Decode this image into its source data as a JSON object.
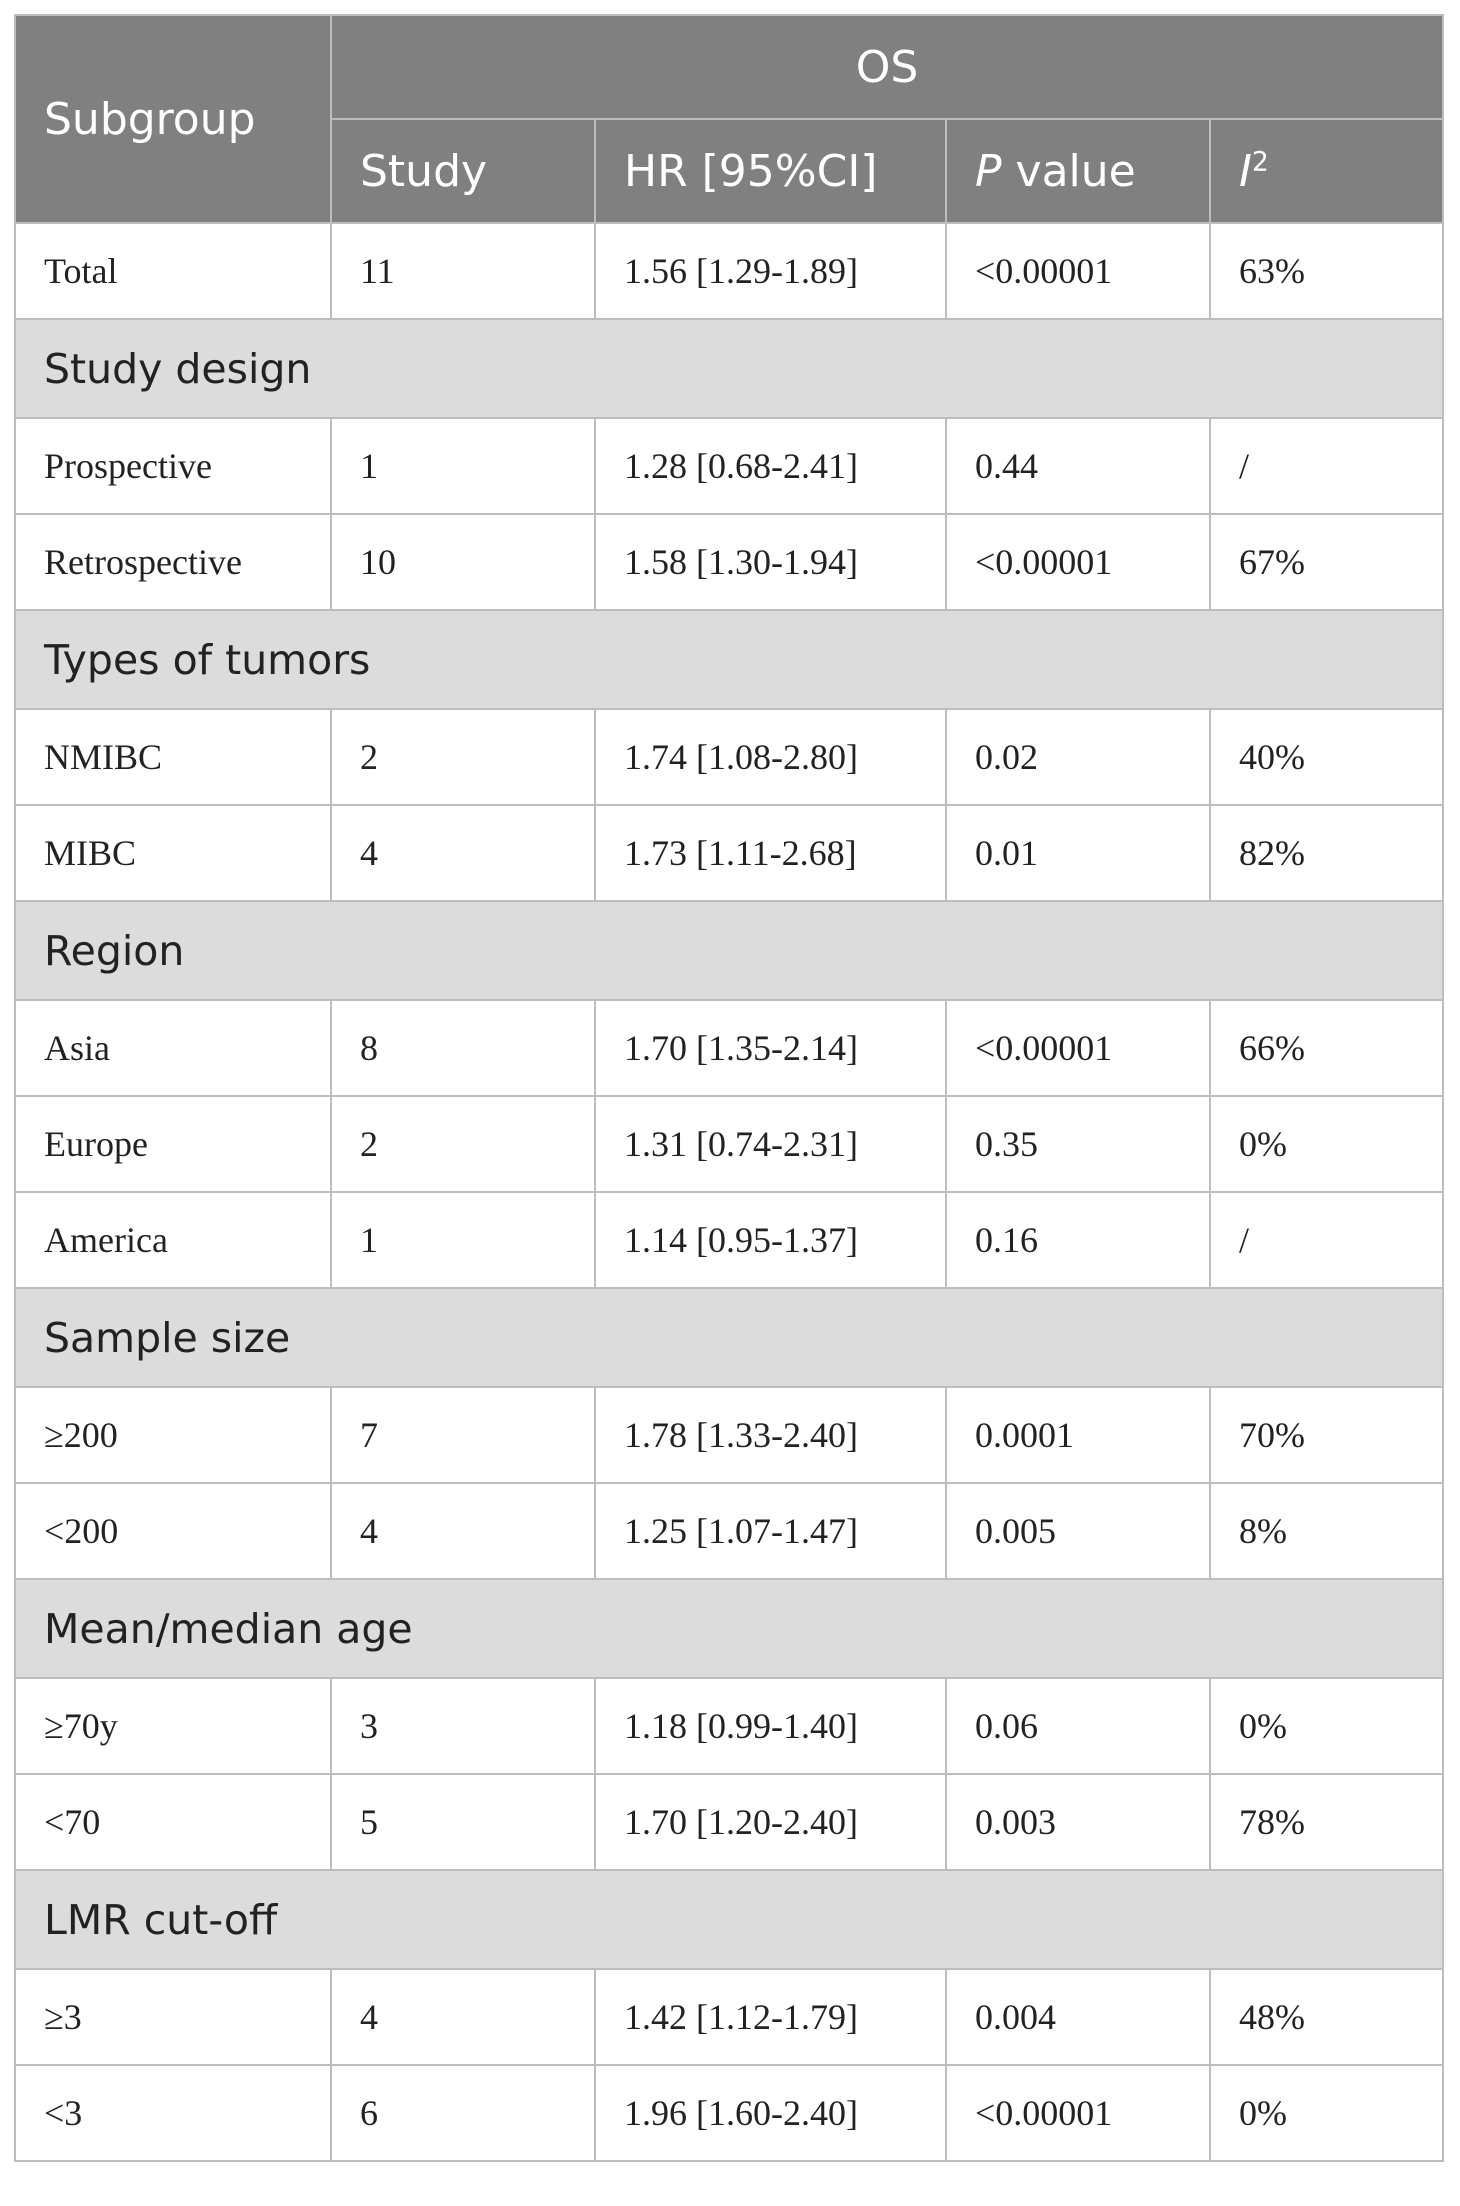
{
  "header": {
    "subgroup": "Subgroup",
    "group": "OS",
    "columns": [
      {
        "text": "Study"
      },
      {
        "text": "HR [95%CI]"
      },
      {
        "italic": "P",
        "text": " value"
      },
      {
        "italic": "I",
        "sup": "2"
      }
    ]
  },
  "table": {
    "rows": [
      {
        "cells": [
          "Total",
          "11",
          "1.56 [1.29-1.89]",
          "<0.00001",
          "63%"
        ]
      },
      {
        "section": "Study design"
      },
      {
        "cells": [
          "Prospective",
          "1",
          "1.28 [0.68-2.41]",
          "0.44",
          "/"
        ]
      },
      {
        "cells": [
          "Retrospective",
          "10",
          "1.58 [1.30-1.94]",
          "<0.00001",
          "67%"
        ]
      },
      {
        "section": "Types of tumors"
      },
      {
        "cells": [
          "NMIBC",
          "2",
          "1.74 [1.08-2.80]",
          "0.02",
          "40%"
        ]
      },
      {
        "cells": [
          "MIBC",
          "4",
          "1.73 [1.11-2.68]",
          "0.01",
          "82%"
        ]
      },
      {
        "section": "Region"
      },
      {
        "cells": [
          "Asia",
          "8",
          "1.70 [1.35-2.14]",
          "<0.00001",
          "66%"
        ]
      },
      {
        "cells": [
          "Europe",
          "2",
          "1.31 [0.74-2.31]",
          "0.35",
          "0%"
        ]
      },
      {
        "cells": [
          "America",
          "1",
          "1.14 [0.95-1.37]",
          "0.16",
          "/"
        ]
      },
      {
        "section": "Sample size"
      },
      {
        "cells": [
          "≥200",
          "7",
          "1.78 [1.33-2.40]",
          "0.0001",
          "70%"
        ]
      },
      {
        "cells": [
          "<200",
          "4",
          "1.25 [1.07-1.47]",
          "0.005",
          "8%"
        ]
      },
      {
        "section": "Mean/median age"
      },
      {
        "cells": [
          "≥70y",
          "3",
          "1.18 [0.99-1.40]",
          "0.06",
          "0%"
        ]
      },
      {
        "cells": [
          "<70",
          "5",
          "1.70 [1.20-2.40]",
          "0.003",
          "78%"
        ]
      },
      {
        "section": "LMR cut-off"
      },
      {
        "cells": [
          "≥3",
          "4",
          "1.42 [1.12-1.79]",
          "0.004",
          "48%"
        ]
      },
      {
        "cells": [
          "<3",
          "6",
          "1.96 [1.60-2.40]",
          "<0.00001",
          "0%"
        ]
      }
    ]
  }
}
